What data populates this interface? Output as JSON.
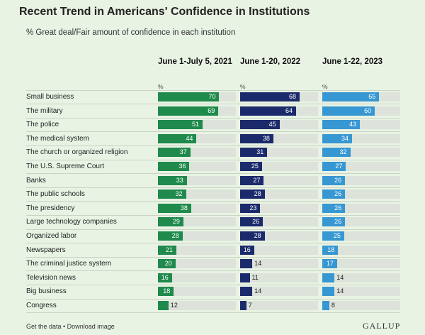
{
  "title": "Recent Trend in Americans' Confidence in Institutions",
  "subtitle": "% Great deal/Fair amount of confidence in each institution",
  "footer": {
    "links": "Get the data • Download image",
    "brand": "GALLUP"
  },
  "chart_data": {
    "type": "bar",
    "orientation": "horizontal",
    "unit_label": "%",
    "categories": [
      "Small business",
      "The military",
      "The police",
      "The medical system",
      "The church or organized religion",
      "The U.S. Supreme Court",
      "Banks",
      "The public schools",
      "The presidency",
      "Large technology companies",
      "Organized labor",
      "Newspapers",
      "The criminal justice system",
      "Television news",
      "Big business",
      "Congress"
    ],
    "series": [
      {
        "name": "June 1-July 5, 2021",
        "color": "#1f8a4c",
        "values": [
          70,
          69,
          51,
          44,
          37,
          36,
          33,
          32,
          38,
          29,
          28,
          21,
          20,
          16,
          18,
          12
        ]
      },
      {
        "name": "June 1-20, 2022",
        "color": "#1b2a6b",
        "values": [
          68,
          64,
          45,
          38,
          31,
          25,
          27,
          28,
          23,
          26,
          28,
          16,
          14,
          11,
          14,
          7
        ]
      },
      {
        "name": "June 1-22, 2023",
        "color": "#3797d3",
        "values": [
          65,
          60,
          43,
          34,
          32,
          27,
          26,
          26,
          26,
          26,
          25,
          18,
          17,
          14,
          14,
          8
        ]
      }
    ],
    "xlim": [
      0,
      100
    ]
  }
}
